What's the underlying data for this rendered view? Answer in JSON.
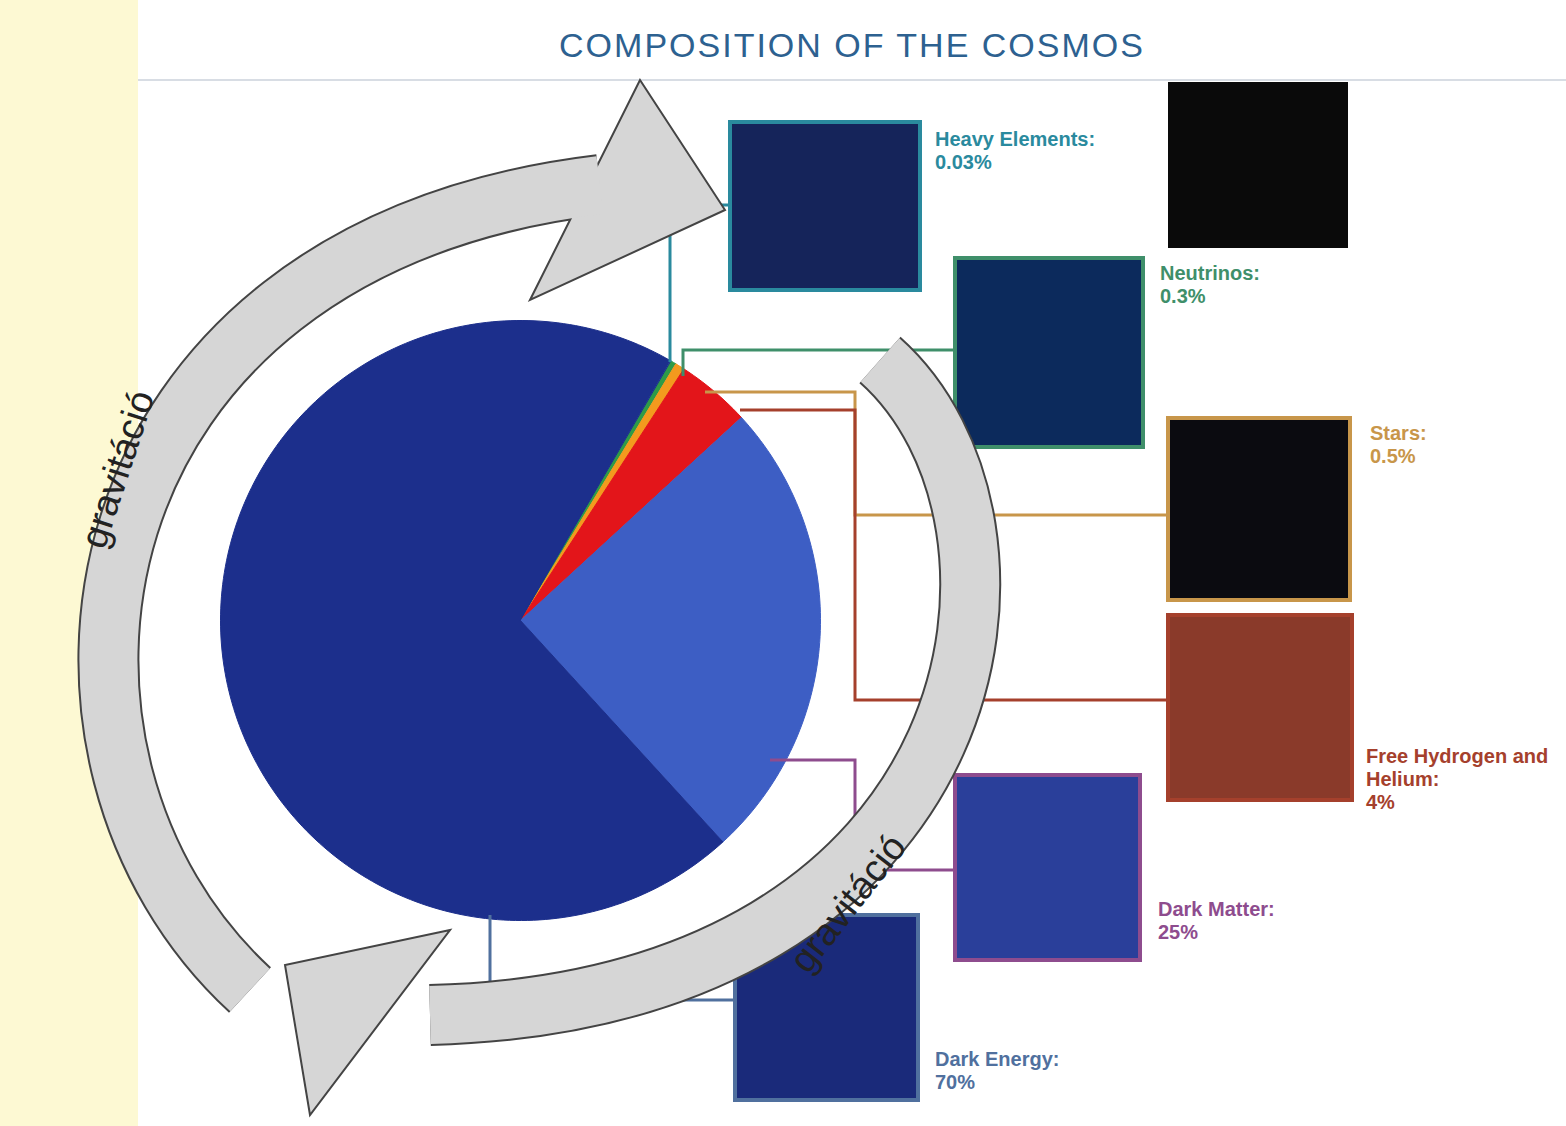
{
  "chart_data": {
    "type": "pie",
    "title": "COMPOSITION OF THE COSMOS",
    "categories": [
      "Heavy Elements:",
      "Neutrinos:",
      "Stars:",
      "Free Hydrogen and Helium:",
      "Dark Matter:",
      "Dark Energy:"
    ],
    "values": [
      0.03,
      0.3,
      0.5,
      4,
      25,
      70
    ],
    "value_labels": [
      "0.03%",
      "0.3%",
      "0.5%",
      "4%",
      "25%",
      "70%"
    ],
    "colors": [
      "#2fa4c9",
      "#2e9b48",
      "#f39a1e",
      "#e3151a",
      "#3d5ec4",
      "#1c2f8c"
    ],
    "data_labels": true,
    "annotations": [
      "gravitáció",
      "gravitáció"
    ]
  }
}
